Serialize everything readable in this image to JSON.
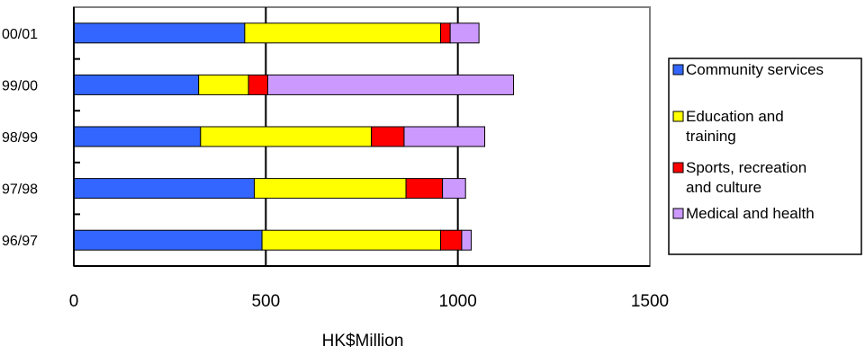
{
  "chart_data": {
    "type": "bar",
    "orientation": "horizontal",
    "stacked": true,
    "categories": [
      "00/01",
      "99/00",
      "98/99",
      "97/98",
      "96/97"
    ],
    "series": [
      {
        "name": "Community services",
        "color": "#3366ff",
        "values": [
          445,
          325,
          330,
          470,
          490
        ]
      },
      {
        "name": "Education and training",
        "color": "#ffff00",
        "values": [
          510,
          130,
          445,
          395,
          465
        ]
      },
      {
        "name": "Sports, recreation and culture",
        "color": "#ff0000",
        "values": [
          25,
          50,
          85,
          95,
          55
        ]
      },
      {
        "name": "Medical and health",
        "color": "#cc99ff",
        "values": [
          75,
          640,
          210,
          60,
          25
        ]
      }
    ],
    "xlabel": "HK$Million",
    "xticks": [
      "0",
      "500",
      "1000",
      "1500"
    ],
    "xlim": [
      0,
      1500
    ],
    "grid": true,
    "legend_position": "right",
    "legend_labels": [
      [
        "Community services"
      ],
      [
        "Education and",
        "training"
      ],
      [
        "Sports, recreation",
        "and culture"
      ],
      [
        "Medical and health"
      ]
    ]
  }
}
